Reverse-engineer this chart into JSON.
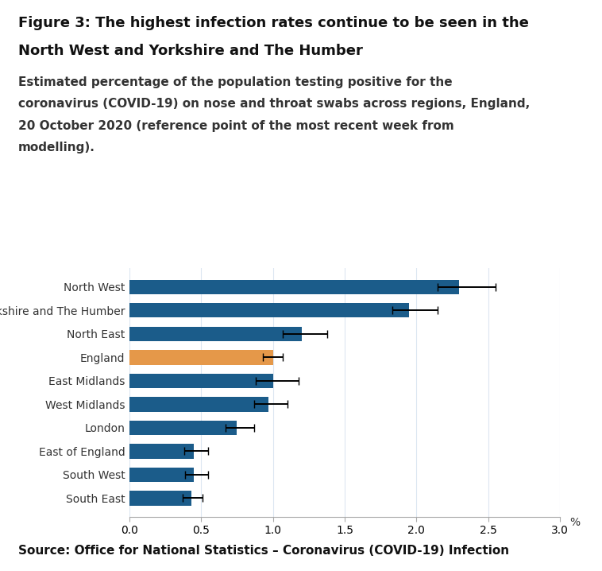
{
  "title_line1": "Figure 3: The highest infection rates continue to be seen in the",
  "title_line2": "North West and Yorkshire and The Humber",
  "subtitle_lines": [
    "Estimated percentage of the population testing positive for the",
    "coronavirus (COVID-19) on nose and throat swabs across regions, England,",
    "20 October 2020 (reference point of the most recent week from",
    "modelling)."
  ],
  "source": "Source: Office for National Statistics – Coronavirus (COVID-19) Infection",
  "categories": [
    "North West",
    "Yorkshire and The Humber",
    "North East",
    "England",
    "East Midlands",
    "West Midlands",
    "London",
    "East of England",
    "South West",
    "South East"
  ],
  "values": [
    2.3,
    1.95,
    1.2,
    1.0,
    1.0,
    0.97,
    0.75,
    0.45,
    0.45,
    0.43
  ],
  "errors_low": [
    0.15,
    0.12,
    0.13,
    0.07,
    0.12,
    0.1,
    0.08,
    0.07,
    0.06,
    0.06
  ],
  "errors_high": [
    0.25,
    0.2,
    0.18,
    0.07,
    0.18,
    0.13,
    0.12,
    0.1,
    0.1,
    0.08
  ],
  "bar_colors": [
    "#1b5c8a",
    "#1b5c8a",
    "#1b5c8a",
    "#e59849",
    "#1b5c8a",
    "#1b5c8a",
    "#1b5c8a",
    "#1b5c8a",
    "#1b5c8a",
    "#1b5c8a"
  ],
  "xlim": [
    0,
    3.0
  ],
  "xticks": [
    0.0,
    0.5,
    1.0,
    1.5,
    2.0,
    2.5,
    3.0
  ],
  "xlabel": "%",
  "background_color": "#ffffff",
  "bar_height": 0.62,
  "title_fontsize": 13,
  "subtitle_fontsize": 11,
  "source_fontsize": 11,
  "tick_fontsize": 10,
  "ylabel_fontsize": 10
}
